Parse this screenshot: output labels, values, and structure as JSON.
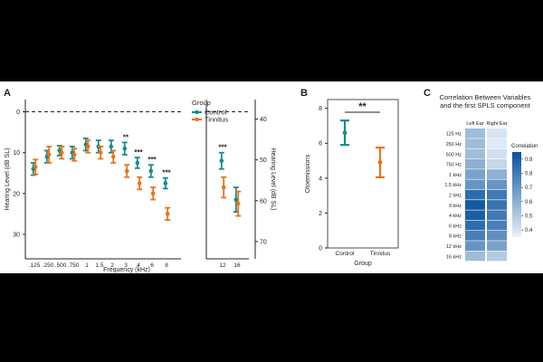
{
  "colors": {
    "control": "#1a8a8a",
    "tinnitus": "#e8731a",
    "axis": "#222222",
    "heat_low": "#eaf2fb",
    "heat_high": "#08519c",
    "background": "#000000"
  },
  "chart_data": [
    {
      "panel": "A",
      "type": "scatter",
      "subtype": "errorbar",
      "xlabel": "Frequency (kHz)",
      "ylabel": "Hearing Level (dB SL)",
      "ylabel_right": "Hearing Level (dB SL)",
      "categories": [
        ".125",
        ".250",
        ".500",
        ".750",
        "1",
        "1.5",
        "2",
        "3",
        "4",
        "6",
        "8"
      ],
      "categories_ext": [
        "12",
        "16"
      ],
      "ylim": [
        36,
        -3
      ],
      "yticks": [
        0,
        10,
        20,
        30
      ],
      "yticks_right": [
        "40",
        "50",
        "60",
        "70"
      ],
      "reference_line": 0,
      "legend_title": "Group",
      "series": [
        {
          "name": "Control",
          "color_key": "control",
          "values": [
            14,
            11,
            9.5,
            10,
            8,
            8.5,
            8.5,
            9,
            12.5,
            14.5,
            17.5
          ],
          "err": [
            1.5,
            1.5,
            1.2,
            1.5,
            1.5,
            1.5,
            1.5,
            1.5,
            1.3,
            1.5,
            1.3
          ],
          "values_ext": [
            12,
            21.5
          ],
          "err_ext": [
            2,
            3
          ]
        },
        {
          "name": "Tinnitus",
          "color_key": "tinnitus",
          "values": [
            13.5,
            10.5,
            10,
            10.5,
            8.5,
            10,
            11,
            14.5,
            17.5,
            20,
            25
          ],
          "err": [
            1.8,
            2,
            1.5,
            1.5,
            1.5,
            1.5,
            1.5,
            1.5,
            1.5,
            1.5,
            1.5
          ],
          "values_ext": [
            18.5,
            22.5
          ],
          "err_ext": [
            2.5,
            3
          ]
        }
      ],
      "annotations": [
        {
          "category": "3",
          "text": "**"
        },
        {
          "category": "4",
          "text": "***"
        },
        {
          "category": "6",
          "text": "***"
        },
        {
          "category": "8",
          "text": "***"
        },
        {
          "category": "12",
          "text": "***"
        }
      ]
    },
    {
      "panel": "B",
      "type": "scatter",
      "subtype": "errorbar",
      "xlabel": "Group",
      "ylabel": "Otoemissions",
      "categories": [
        "Control",
        "Tinnitus"
      ],
      "values": [
        6.6,
        4.9
      ],
      "err": [
        0.7,
        0.85
      ],
      "ylim": [
        0,
        8.5
      ],
      "yticks": [
        0,
        2,
        4,
        6,
        8
      ],
      "annotation": "**"
    },
    {
      "panel": "C",
      "type": "heatmap",
      "title": "Correlation Between Variables and the first SPLS component",
      "title_lines": [
        "Correlation Between Variables",
        "and the first SPLS component"
      ],
      "columns": [
        "Left Ear",
        "Right Ear"
      ],
      "rows": [
        "125 Hz",
        "250 Hz",
        "500 Hz",
        "750 Hz",
        "1 kHz",
        "1.5 kHz",
        "2 kHz",
        "3 kHz",
        "4 kHz",
        "6 kHz",
        "8 kHz",
        "12 kHz",
        "16 kHz"
      ],
      "values": [
        [
          0.55,
          0.4
        ],
        [
          0.55,
          0.38
        ],
        [
          0.55,
          0.42
        ],
        [
          0.6,
          0.45
        ],
        [
          0.65,
          0.6
        ],
        [
          0.7,
          0.7
        ],
        [
          0.85,
          0.8
        ],
        [
          0.92,
          0.82
        ],
        [
          0.9,
          0.8
        ],
        [
          0.85,
          0.78
        ],
        [
          0.78,
          0.72
        ],
        [
          0.7,
          0.65
        ],
        [
          0.55,
          0.5
        ]
      ],
      "legend_title": "Correlation",
      "colorbar_ticks": [
        "0.9",
        "0.8",
        "0.7",
        "0.6",
        "0.5",
        "0.4"
      ],
      "zlim": [
        0.35,
        0.95
      ]
    }
  ]
}
